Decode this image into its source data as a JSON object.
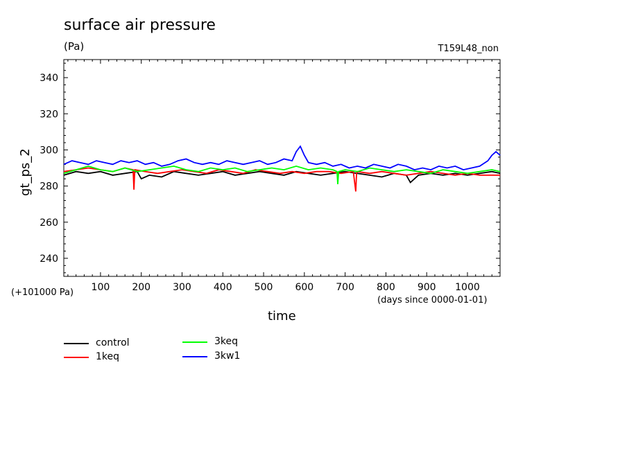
{
  "header": {
    "title": "surface air pressure",
    "units": "(Pa)",
    "run_name": "T159L48_non"
  },
  "chart_data": {
    "type": "line",
    "ylabel": "gt_ps_2",
    "xlabel": "time",
    "x_note": "(days since 0000-01-01)",
    "y_offset_note": "(+101000 Pa)",
    "xlim": [
      10,
      1080
    ],
    "ylim": [
      230,
      350
    ],
    "x_ticks": [
      100,
      200,
      300,
      400,
      500,
      600,
      700,
      800,
      900,
      1000
    ],
    "y_ticks": [
      240,
      260,
      280,
      300,
      320,
      340
    ],
    "grid": false,
    "legend_position": "bottom-left",
    "series": [
      {
        "name": "control",
        "color": "#000000",
        "x": [
          10,
          40,
          70,
          100,
          130,
          160,
          190,
          200,
          220,
          250,
          280,
          310,
          340,
          370,
          400,
          430,
          460,
          490,
          520,
          550,
          580,
          610,
          640,
          670,
          700,
          730,
          760,
          790,
          820,
          850,
          860,
          880,
          910,
          940,
          970,
          1000,
          1030,
          1060,
          1080
        ],
        "y": [
          286,
          288,
          287,
          288,
          286,
          287,
          288,
          284,
          286,
          285,
          288,
          287,
          286,
          287,
          288,
          286,
          287,
          288,
          287,
          286,
          288,
          287,
          286,
          287,
          288,
          287,
          286,
          285,
          287,
          286,
          282,
          286,
          287,
          286,
          287,
          286,
          287,
          288,
          287
        ]
      },
      {
        "name": "1keq",
        "color": "#ff0000",
        "x": [
          10,
          40,
          70,
          100,
          130,
          160,
          180,
          182,
          184,
          210,
          240,
          270,
          300,
          330,
          360,
          390,
          420,
          450,
          480,
          510,
          540,
          570,
          600,
          630,
          660,
          690,
          720,
          726,
          728,
          730,
          760,
          790,
          820,
          850,
          880,
          910,
          940,
          970,
          1000,
          1030,
          1060,
          1080
        ],
        "y": [
          288,
          289,
          290,
          289,
          288,
          290,
          289,
          278,
          289,
          288,
          287,
          288,
          289,
          288,
          287,
          289,
          288,
          287,
          289,
          288,
          287,
          288,
          287,
          288,
          288,
          287,
          288,
          277,
          287,
          288,
          287,
          288,
          287,
          286,
          287,
          288,
          287,
          286,
          287,
          286,
          286,
          286
        ]
      },
      {
        "name": "3keq",
        "color": "#00ff00",
        "x": [
          10,
          40,
          70,
          100,
          130,
          160,
          190,
          220,
          250,
          280,
          310,
          340,
          370,
          400,
          430,
          460,
          490,
          520,
          550,
          580,
          610,
          640,
          670,
          680,
          682,
          684,
          700,
          730,
          760,
          790,
          820,
          850,
          880,
          910,
          940,
          970,
          1000,
          1030,
          1060,
          1080
        ],
        "y": [
          287,
          289,
          291,
          289,
          288,
          290,
          288,
          289,
          290,
          291,
          289,
          288,
          290,
          289,
          290,
          288,
          289,
          290,
          289,
          291,
          289,
          290,
          289,
          288,
          281,
          288,
          289,
          288,
          290,
          289,
          288,
          289,
          288,
          287,
          289,
          288,
          287,
          288,
          289,
          288
        ]
      },
      {
        "name": "3kw1",
        "color": "#0000ff",
        "x": [
          10,
          30,
          50,
          70,
          90,
          110,
          130,
          150,
          170,
          190,
          210,
          230,
          250,
          270,
          290,
          310,
          330,
          350,
          370,
          390,
          410,
          430,
          450,
          470,
          490,
          510,
          530,
          550,
          570,
          580,
          590,
          600,
          610,
          630,
          650,
          670,
          690,
          710,
          730,
          750,
          770,
          790,
          810,
          830,
          850,
          870,
          890,
          910,
          930,
          950,
          970,
          990,
          1010,
          1030,
          1050,
          1060,
          1070,
          1080
        ],
        "y": [
          292,
          294,
          293,
          292,
          294,
          293,
          292,
          294,
          293,
          294,
          292,
          293,
          291,
          292,
          294,
          295,
          293,
          292,
          293,
          292,
          294,
          293,
          292,
          293,
          294,
          292,
          293,
          295,
          294,
          299,
          302,
          297,
          293,
          292,
          293,
          291,
          292,
          290,
          291,
          290,
          292,
          291,
          290,
          292,
          291,
          289,
          290,
          289,
          291,
          290,
          291,
          289,
          290,
          291,
          294,
          297,
          299,
          297
        ]
      }
    ]
  }
}
